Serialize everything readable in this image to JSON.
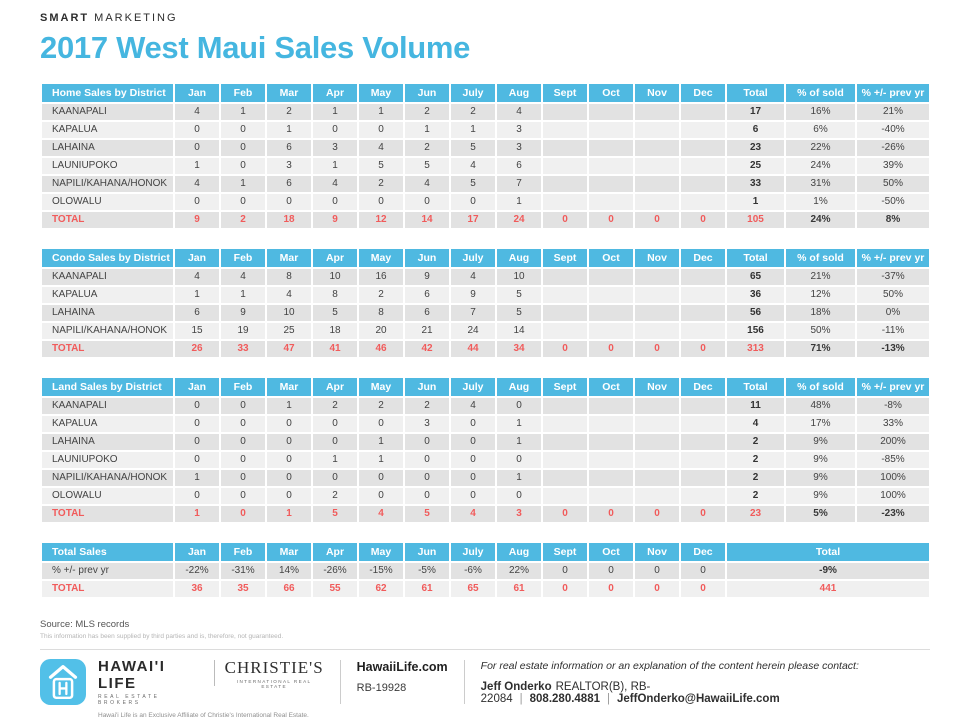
{
  "brand": {
    "bold": "SMART",
    "rest": " MARKETING"
  },
  "title": "2017 West Maui Sales Volume",
  "columns": {
    "months": [
      "Jan",
      "Feb",
      "Mar",
      "Apr",
      "May",
      "Jun",
      "July",
      "Aug",
      "Sept",
      "Oct",
      "Nov",
      "Dec"
    ],
    "total": "Total",
    "pct_sold": "% of sold",
    "pct_prev": "% +/- prev yr"
  },
  "tables": [
    {
      "title": "Home Sales by District",
      "data_name": "home-sales-table",
      "type": "district",
      "rows": [
        {
          "label": "KAANAPALI",
          "months": [
            4,
            1,
            2,
            1,
            1,
            2,
            2,
            4,
            "",
            "",
            "",
            ""
          ],
          "total": 17,
          "pct_sold": "16%",
          "pct_prev": "21%"
        },
        {
          "label": "KAPALUA",
          "months": [
            0,
            0,
            1,
            0,
            0,
            1,
            1,
            3,
            "",
            "",
            "",
            ""
          ],
          "total": 6,
          "pct_sold": "6%",
          "pct_prev": "-40%"
        },
        {
          "label": "LAHAINA",
          "months": [
            0,
            0,
            6,
            3,
            4,
            2,
            5,
            3,
            "",
            "",
            "",
            ""
          ],
          "total": 23,
          "pct_sold": "22%",
          "pct_prev": "-26%"
        },
        {
          "label": "LAUNIUPOKO",
          "months": [
            1,
            0,
            3,
            1,
            5,
            5,
            4,
            6,
            "",
            "",
            "",
            ""
          ],
          "total": 25,
          "pct_sold": "24%",
          "pct_prev": "39%"
        },
        {
          "label": "NAPILI/KAHANA/HONOK",
          "months": [
            4,
            1,
            6,
            4,
            2,
            4,
            5,
            7,
            "",
            "",
            "",
            ""
          ],
          "total": 33,
          "pct_sold": "31%",
          "pct_prev": "50%"
        },
        {
          "label": "OLOWALU",
          "months": [
            0,
            0,
            0,
            0,
            0,
            0,
            0,
            1,
            "",
            "",
            "",
            ""
          ],
          "total": 1,
          "pct_sold": "1%",
          "pct_prev": "-50%"
        }
      ],
      "total_row": {
        "label": "TOTAL",
        "months": [
          9,
          2,
          18,
          9,
          12,
          14,
          17,
          24,
          0,
          0,
          0,
          0
        ],
        "total": 105,
        "pct_sold": "24%",
        "pct_prev": "8%"
      }
    },
    {
      "title": "Condo Sales by District",
      "data_name": "condo-sales-table",
      "type": "district",
      "rows": [
        {
          "label": "KAANAPALI",
          "months": [
            4,
            4,
            8,
            10,
            16,
            9,
            4,
            10,
            "",
            "",
            "",
            ""
          ],
          "total": 65,
          "pct_sold": "21%",
          "pct_prev": "-37%"
        },
        {
          "label": "KAPALUA",
          "months": [
            1,
            1,
            4,
            8,
            2,
            6,
            9,
            5,
            "",
            "",
            "",
            ""
          ],
          "total": 36,
          "pct_sold": "12%",
          "pct_prev": "50%"
        },
        {
          "label": "LAHAINA",
          "months": [
            6,
            9,
            10,
            5,
            8,
            6,
            7,
            5,
            "",
            "",
            "",
            ""
          ],
          "total": 56,
          "pct_sold": "18%",
          "pct_prev": "0%"
        },
        {
          "label": "NAPILI/KAHANA/HONOK",
          "months": [
            15,
            19,
            25,
            18,
            20,
            21,
            24,
            14,
            "",
            "",
            "",
            ""
          ],
          "total": 156,
          "pct_sold": "50%",
          "pct_prev": "-11%"
        }
      ],
      "total_row": {
        "label": "TOTAL",
        "months": [
          26,
          33,
          47,
          41,
          46,
          42,
          44,
          34,
          0,
          0,
          0,
          0
        ],
        "total": 313,
        "pct_sold": "71%",
        "pct_prev": "-13%"
      }
    },
    {
      "title": "Land Sales by District",
      "data_name": "land-sales-table",
      "type": "district",
      "rows": [
        {
          "label": "KAANAPALI",
          "months": [
            0,
            0,
            1,
            2,
            2,
            2,
            4,
            0,
            "",
            "",
            "",
            ""
          ],
          "total": 11,
          "pct_sold": "48%",
          "pct_prev": "-8%"
        },
        {
          "label": "KAPALUA",
          "months": [
            0,
            0,
            0,
            0,
            0,
            3,
            0,
            1,
            "",
            "",
            "",
            ""
          ],
          "total": 4,
          "pct_sold": "17%",
          "pct_prev": "33%"
        },
        {
          "label": "LAHAINA",
          "months": [
            0,
            0,
            0,
            0,
            1,
            0,
            0,
            1,
            "",
            "",
            "",
            ""
          ],
          "total": 2,
          "pct_sold": "9%",
          "pct_prev": "200%"
        },
        {
          "label": "LAUNIUPOKO",
          "months": [
            0,
            0,
            0,
            1,
            1,
            0,
            0,
            0,
            "",
            "",
            "",
            ""
          ],
          "total": 2,
          "pct_sold": "9%",
          "pct_prev": "-85%"
        },
        {
          "label": "NAPILI/KAHANA/HONOK",
          "months": [
            1,
            0,
            0,
            0,
            0,
            0,
            0,
            1,
            "",
            "",
            "",
            ""
          ],
          "total": 2,
          "pct_sold": "9%",
          "pct_prev": "100%"
        },
        {
          "label": "OLOWALU",
          "months": [
            0,
            0,
            0,
            2,
            0,
            0,
            0,
            0,
            "",
            "",
            "",
            ""
          ],
          "total": 2,
          "pct_sold": "9%",
          "pct_prev": "100%"
        }
      ],
      "total_row": {
        "label": "TOTAL",
        "months": [
          1,
          0,
          1,
          5,
          4,
          5,
          4,
          3,
          0,
          0,
          0,
          0
        ],
        "total": 23,
        "pct_sold": "5%",
        "pct_prev": "-23%"
      }
    },
    {
      "title": "Total Sales",
      "data_name": "total-sales-table",
      "type": "summary",
      "rows": [
        {
          "label": "% +/- prev yr",
          "months": [
            "-22%",
            "-31%",
            "14%",
            "-26%",
            "-15%",
            "-5%",
            "-6%",
            "22%",
            "0",
            "0",
            "0",
            "0"
          ],
          "total": "-9%"
        }
      ],
      "total_row": {
        "label": "TOTAL",
        "months": [
          36,
          35,
          66,
          55,
          62,
          61,
          65,
          61,
          0,
          0,
          0,
          0
        ],
        "total": 441
      }
    }
  ],
  "source": {
    "line1": "Source: MLS records",
    "line2": "This information has been supplied by third parties and is, therefore, not guaranteed."
  },
  "footer": {
    "hawaii_life": "HAWAI'I LIFE",
    "hawaii_life_sub": "REAL ESTATE BROKERS",
    "christies": "CHRISTIE'S",
    "christies_sub": "INTERNATIONAL REAL ESTATE",
    "affiliate": "Hawai'i Life is an Exclusive Affiliate of Christie's International Real Estate.",
    "website": "HawaiiLife.com",
    "license": "RB-19928",
    "contact_intro": "For real estate information or an explanation of the content herein please contact:",
    "agent_name": "Jeff Onderko",
    "agent_title": "REALTOR(B), RB-22084",
    "phone": "808.280.4881",
    "email": "JeffOnderko@HawaiiLife.com"
  },
  "colors": {
    "accent_blue": "#4fb9e1",
    "accent_red": "#f15b5b",
    "row_dark": "#e2e2e2",
    "row_light": "#f0f0f0"
  }
}
